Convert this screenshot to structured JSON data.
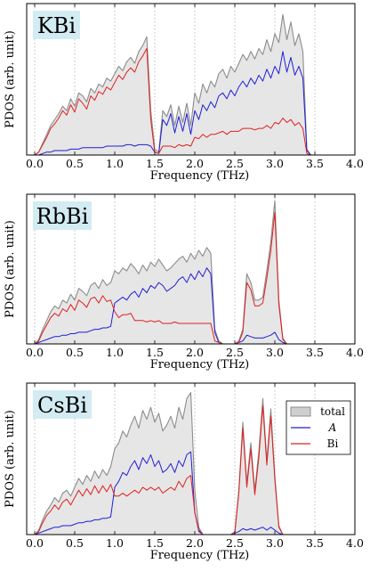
{
  "chart_data": [
    {
      "type": "area",
      "label": "KBi",
      "xlabel": "Frequency (THz)",
      "ylabel": "PDOS (arb. unit)",
      "xlim": [
        -0.1,
        4.0
      ],
      "ylim": [
        0,
        1
      ],
      "xticks": [
        "0.0",
        "0.5",
        "1.0",
        "1.5",
        "2.0",
        "2.5",
        "3.0",
        "3.5",
        "4.0"
      ],
      "xgrid": true,
      "x": [
        0.0,
        0.05,
        0.1,
        0.15,
        0.2,
        0.25,
        0.3,
        0.35,
        0.4,
        0.45,
        0.5,
        0.55,
        0.6,
        0.65,
        0.7,
        0.75,
        0.8,
        0.85,
        0.9,
        0.95,
        1.0,
        1.05,
        1.1,
        1.15,
        1.2,
        1.25,
        1.3,
        1.35,
        1.4,
        1.45,
        1.5,
        1.55,
        1.6,
        1.65,
        1.7,
        1.75,
        1.8,
        1.85,
        1.9,
        1.95,
        2.0,
        2.05,
        2.1,
        2.15,
        2.2,
        2.25,
        2.3,
        2.35,
        2.4,
        2.45,
        2.5,
        2.55,
        2.6,
        2.65,
        2.7,
        2.75,
        2.8,
        2.85,
        2.9,
        2.95,
        3.0,
        3.05,
        3.1,
        3.15,
        3.2,
        3.25,
        3.3,
        3.35,
        3.4,
        3.45,
        3.5
      ],
      "series": [
        {
          "name": "total",
          "color": "#8c8c8c",
          "values": [
            0.0,
            0.02,
            0.08,
            0.14,
            0.2,
            0.24,
            0.28,
            0.33,
            0.3,
            0.38,
            0.33,
            0.42,
            0.4,
            0.36,
            0.45,
            0.42,
            0.48,
            0.46,
            0.52,
            0.5,
            0.55,
            0.6,
            0.57,
            0.63,
            0.66,
            0.62,
            0.7,
            0.74,
            0.8,
            0.3,
            0.04,
            0.02,
            0.3,
            0.26,
            0.34,
            0.2,
            0.33,
            0.22,
            0.35,
            0.2,
            0.42,
            0.35,
            0.48,
            0.42,
            0.5,
            0.46,
            0.55,
            0.58,
            0.52,
            0.6,
            0.56,
            0.62,
            0.68,
            0.64,
            0.7,
            0.65,
            0.72,
            0.68,
            0.78,
            0.7,
            0.82,
            0.76,
            0.95,
            0.78,
            0.9,
            0.74,
            0.82,
            0.7,
            0.04,
            0.0,
            0.0
          ]
        },
        {
          "name": "A",
          "color": "#1f1fd6",
          "values": [
            0.0,
            0.0,
            0.01,
            0.02,
            0.02,
            0.03,
            0.03,
            0.03,
            0.03,
            0.04,
            0.04,
            0.04,
            0.05,
            0.05,
            0.05,
            0.05,
            0.05,
            0.05,
            0.06,
            0.06,
            0.06,
            0.06,
            0.06,
            0.07,
            0.07,
            0.06,
            0.07,
            0.07,
            0.07,
            0.06,
            0.02,
            0.01,
            0.24,
            0.2,
            0.28,
            0.15,
            0.26,
            0.16,
            0.28,
            0.14,
            0.3,
            0.24,
            0.34,
            0.3,
            0.36,
            0.32,
            0.4,
            0.42,
            0.38,
            0.44,
            0.4,
            0.46,
            0.5,
            0.46,
            0.52,
            0.48,
            0.54,
            0.5,
            0.58,
            0.52,
            0.6,
            0.55,
            0.7,
            0.56,
            0.66,
            0.54,
            0.6,
            0.52,
            0.03,
            0.0,
            0.0
          ]
        },
        {
          "name": "Bi",
          "color": "#e02020",
          "values": [
            0.0,
            0.02,
            0.07,
            0.12,
            0.18,
            0.21,
            0.25,
            0.3,
            0.27,
            0.34,
            0.29,
            0.38,
            0.35,
            0.31,
            0.4,
            0.37,
            0.43,
            0.41,
            0.46,
            0.44,
            0.49,
            0.54,
            0.51,
            0.56,
            0.59,
            0.56,
            0.63,
            0.67,
            0.72,
            0.24,
            0.02,
            0.01,
            0.06,
            0.06,
            0.06,
            0.05,
            0.07,
            0.06,
            0.07,
            0.06,
            0.12,
            0.11,
            0.14,
            0.12,
            0.14,
            0.14,
            0.15,
            0.16,
            0.14,
            0.16,
            0.16,
            0.16,
            0.18,
            0.18,
            0.18,
            0.17,
            0.18,
            0.18,
            0.2,
            0.18,
            0.22,
            0.21,
            0.25,
            0.22,
            0.24,
            0.2,
            0.22,
            0.18,
            0.01,
            0.0,
            0.0
          ]
        }
      ]
    },
    {
      "type": "area",
      "label": "RbBi",
      "xlabel": "Frequency (THz)",
      "ylabel": "PDOS (arb. unit)",
      "xlim": [
        -0.1,
        4.0
      ],
      "ylim": [
        0,
        1
      ],
      "xticks": [
        "0.0",
        "0.5",
        "1.0",
        "1.5",
        "2.0",
        "2.5",
        "3.0",
        "3.5",
        "4.0"
      ],
      "xgrid": true,
      "x": [
        0.0,
        0.05,
        0.1,
        0.15,
        0.2,
        0.25,
        0.3,
        0.35,
        0.4,
        0.45,
        0.5,
        0.55,
        0.6,
        0.65,
        0.7,
        0.75,
        0.8,
        0.85,
        0.9,
        0.95,
        1.0,
        1.05,
        1.1,
        1.15,
        1.2,
        1.25,
        1.3,
        1.35,
        1.4,
        1.45,
        1.5,
        1.55,
        1.6,
        1.65,
        1.7,
        1.75,
        1.8,
        1.85,
        1.9,
        1.95,
        2.0,
        2.05,
        2.1,
        2.15,
        2.2,
        2.25,
        2.3,
        2.35,
        2.4,
        2.45,
        2.5,
        2.55,
        2.6,
        2.65,
        2.7,
        2.75,
        2.8,
        2.85,
        2.9,
        2.95,
        3.0,
        3.05,
        3.1,
        3.15,
        3.2
      ],
      "series": [
        {
          "name": "total",
          "color": "#8c8c8c",
          "values": [
            0.0,
            0.03,
            0.1,
            0.16,
            0.22,
            0.26,
            0.24,
            0.3,
            0.28,
            0.34,
            0.3,
            0.38,
            0.36,
            0.33,
            0.4,
            0.42,
            0.38,
            0.44,
            0.4,
            0.42,
            0.5,
            0.48,
            0.52,
            0.5,
            0.55,
            0.52,
            0.48,
            0.54,
            0.5,
            0.56,
            0.53,
            0.58,
            0.54,
            0.5,
            0.52,
            0.55,
            0.58,
            0.6,
            0.56,
            0.62,
            0.58,
            0.64,
            0.6,
            0.66,
            0.62,
            0.1,
            0.02,
            0.0,
            0.0,
            0.0,
            0.0,
            0.02,
            0.1,
            0.48,
            0.42,
            0.3,
            0.3,
            0.32,
            0.5,
            0.7,
            0.98,
            0.3,
            0.04,
            0.0,
            0.0
          ]
        },
        {
          "name": "A",
          "color": "#1f1fd6",
          "values": [
            0.0,
            0.01,
            0.02,
            0.03,
            0.04,
            0.05,
            0.05,
            0.06,
            0.06,
            0.07,
            0.07,
            0.08,
            0.08,
            0.08,
            0.09,
            0.1,
            0.1,
            0.11,
            0.11,
            0.12,
            0.28,
            0.3,
            0.32,
            0.3,
            0.34,
            0.36,
            0.32,
            0.38,
            0.35,
            0.4,
            0.38,
            0.42,
            0.4,
            0.36,
            0.38,
            0.4,
            0.44,
            0.46,
            0.42,
            0.48,
            0.44,
            0.5,
            0.46,
            0.52,
            0.48,
            0.08,
            0.01,
            0.0,
            0.0,
            0.0,
            0.0,
            0.01,
            0.02,
            0.06,
            0.05,
            0.04,
            0.04,
            0.04,
            0.05,
            0.06,
            0.08,
            0.03,
            0.01,
            0.0,
            0.0
          ]
        },
        {
          "name": "Bi",
          "color": "#e02020",
          "values": [
            0.0,
            0.02,
            0.08,
            0.13,
            0.18,
            0.21,
            0.19,
            0.24,
            0.22,
            0.27,
            0.23,
            0.3,
            0.28,
            0.25,
            0.31,
            0.32,
            0.28,
            0.33,
            0.29,
            0.3,
            0.22,
            0.18,
            0.2,
            0.2,
            0.21,
            0.16,
            0.16,
            0.16,
            0.15,
            0.16,
            0.15,
            0.16,
            0.14,
            0.14,
            0.14,
            0.15,
            0.14,
            0.14,
            0.14,
            0.14,
            0.14,
            0.14,
            0.14,
            0.14,
            0.14,
            0.02,
            0.01,
            0.0,
            0.0,
            0.0,
            0.0,
            0.01,
            0.08,
            0.42,
            0.37,
            0.26,
            0.26,
            0.28,
            0.45,
            0.64,
            0.9,
            0.27,
            0.03,
            0.0,
            0.0
          ]
        }
      ]
    },
    {
      "type": "area",
      "label": "CsBi",
      "xlabel": "Frequency (THz)",
      "ylabel": "PDOS (arb. unit)",
      "xlim": [
        -0.1,
        4.0
      ],
      "ylim": [
        0,
        1
      ],
      "xticks": [
        "0.0",
        "0.5",
        "1.0",
        "1.5",
        "2.0",
        "2.5",
        "3.0",
        "3.5",
        "4.0"
      ],
      "xgrid": true,
      "legend": {
        "position": "top-right",
        "entries": [
          "total",
          "A",
          "Bi"
        ]
      },
      "x": [
        0.0,
        0.05,
        0.1,
        0.15,
        0.2,
        0.25,
        0.3,
        0.35,
        0.4,
        0.45,
        0.5,
        0.55,
        0.6,
        0.65,
        0.7,
        0.75,
        0.8,
        0.85,
        0.9,
        0.95,
        1.0,
        1.05,
        1.1,
        1.15,
        1.2,
        1.25,
        1.3,
        1.35,
        1.4,
        1.45,
        1.5,
        1.55,
        1.6,
        1.65,
        1.7,
        1.75,
        1.8,
        1.85,
        1.9,
        1.95,
        2.0,
        2.05,
        2.1,
        2.15,
        2.2,
        2.25,
        2.3,
        2.35,
        2.4,
        2.45,
        2.5,
        2.55,
        2.6,
        2.65,
        2.7,
        2.75,
        2.8,
        2.85,
        2.9,
        2.95,
        3.0,
        3.05,
        3.1,
        3.15,
        3.2
      ],
      "series": [
        {
          "name": "total",
          "color": "#8c8c8c",
          "values": [
            0.0,
            0.03,
            0.1,
            0.16,
            0.2,
            0.25,
            0.22,
            0.28,
            0.3,
            0.26,
            0.32,
            0.38,
            0.34,
            0.4,
            0.36,
            0.43,
            0.38,
            0.44,
            0.4,
            0.46,
            0.58,
            0.62,
            0.7,
            0.66,
            0.74,
            0.8,
            0.72,
            0.84,
            0.78,
            0.86,
            0.76,
            0.82,
            0.7,
            0.74,
            0.8,
            0.72,
            0.86,
            0.78,
            0.92,
            0.96,
            0.3,
            0.05,
            0.0,
            0.0,
            0.0,
            0.0,
            0.0,
            0.0,
            0.0,
            0.0,
            0.02,
            0.3,
            0.76,
            0.35,
            0.62,
            0.3,
            0.56,
            0.92,
            0.5,
            0.85,
            0.4,
            0.06,
            0.0,
            0.0,
            0.0
          ]
        },
        {
          "name": "A",
          "color": "#1f1fd6",
          "values": [
            0.0,
            0.01,
            0.02,
            0.03,
            0.04,
            0.05,
            0.05,
            0.06,
            0.06,
            0.06,
            0.07,
            0.08,
            0.08,
            0.09,
            0.09,
            0.1,
            0.1,
            0.11,
            0.11,
            0.12,
            0.32,
            0.36,
            0.42,
            0.4,
            0.46,
            0.5,
            0.44,
            0.52,
            0.48,
            0.54,
            0.46,
            0.5,
            0.42,
            0.44,
            0.48,
            0.42,
            0.5,
            0.46,
            0.54,
            0.56,
            0.15,
            0.03,
            0.0,
            0.0,
            0.0,
            0.0,
            0.0,
            0.0,
            0.0,
            0.0,
            0.01,
            0.02,
            0.04,
            0.03,
            0.04,
            0.03,
            0.04,
            0.05,
            0.03,
            0.05,
            0.03,
            0.01,
            0.0,
            0.0,
            0.0
          ]
        },
        {
          "name": "Bi",
          "color": "#e02020",
          "values": [
            0.0,
            0.02,
            0.08,
            0.13,
            0.16,
            0.2,
            0.17,
            0.22,
            0.24,
            0.2,
            0.25,
            0.3,
            0.26,
            0.31,
            0.27,
            0.33,
            0.28,
            0.33,
            0.29,
            0.34,
            0.26,
            0.26,
            0.28,
            0.26,
            0.28,
            0.3,
            0.28,
            0.32,
            0.3,
            0.32,
            0.3,
            0.32,
            0.28,
            0.3,
            0.32,
            0.3,
            0.36,
            0.32,
            0.38,
            0.4,
            0.15,
            0.02,
            0.0,
            0.0,
            0.0,
            0.0,
            0.0,
            0.0,
            0.0,
            0.0,
            0.01,
            0.28,
            0.72,
            0.32,
            0.58,
            0.27,
            0.52,
            0.87,
            0.47,
            0.8,
            0.37,
            0.05,
            0.0,
            0.0,
            0.0
          ]
        }
      ]
    }
  ]
}
